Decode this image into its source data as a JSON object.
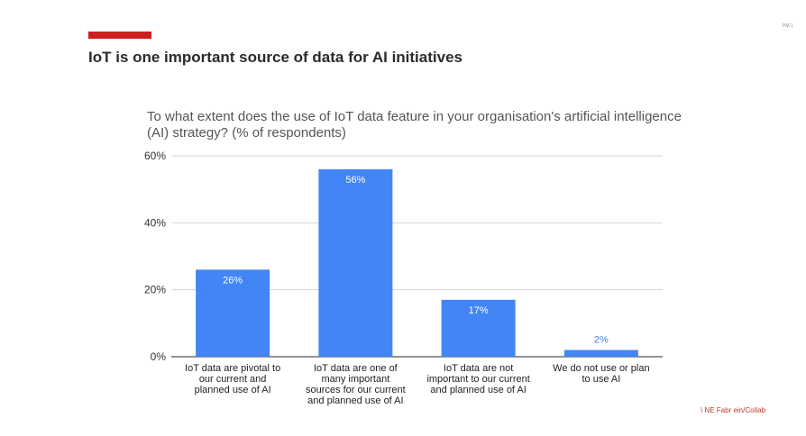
{
  "slide": {
    "title": "IoT is one important source of data for AI initiatives",
    "page_number": "PM 1",
    "accent_color": "#cc2020",
    "watermark": "\\ NE Fabr ein/Collab"
  },
  "chart_data": {
    "type": "bar",
    "title": "To what extent does the use of IoT data feature in your organisation's artificial intelligence (AI) strategy? (% of respondents)",
    "categories": [
      "IoT data are pivotal to our current and planned use of AI",
      "IoT data are one of many important sources for our current and planned use of AI",
      "IoT data are not important to our current and planned use of AI",
      "We do not use or plan to use AI"
    ],
    "values": [
      26,
      56,
      17,
      2
    ],
    "data_labels": [
      "26%",
      "56%",
      "17%",
      "2%"
    ],
    "ylim": [
      0,
      60
    ],
    "yticks": [
      0,
      20,
      40,
      60
    ],
    "ytick_labels": [
      "0%",
      "20%",
      "40%",
      "60%"
    ],
    "bar_color": "#4285f4",
    "grid": true,
    "legend": "none"
  }
}
